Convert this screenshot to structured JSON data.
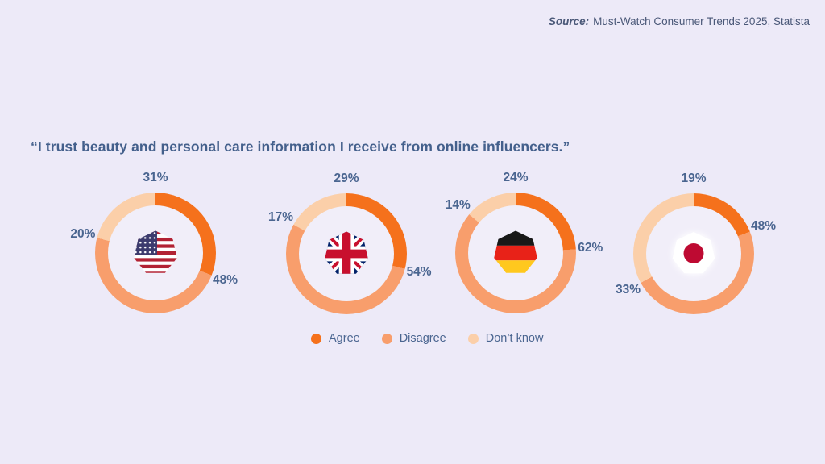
{
  "source": {
    "label": "Source:",
    "text": "Must-Watch Consumer Trends 2025, Statista"
  },
  "title": "“I trust beauty and personal care information I receive from online influencers.”",
  "legend": [
    {
      "label": "Agree",
      "color": "#F5711C"
    },
    {
      "label": "Disagree",
      "color": "#F89E6C"
    },
    {
      "label": "Don’t know",
      "color": "#FBCFA9"
    }
  ],
  "colors": {
    "background": "#EDEAF8",
    "donut_hole": "#F1EEF9",
    "text": "#4A6590",
    "title_text": "#44608C",
    "source_text": "#4A5878"
  },
  "chart_data": [
    {
      "type": "pie",
      "subtype": "donut",
      "country": "United States",
      "center_icon": "usa-flag-icon",
      "categories": [
        "Agree",
        "Disagree",
        "Don’t know"
      ],
      "values": [
        31,
        48,
        20
      ],
      "unit": "%",
      "start_angle_deg": 0,
      "direction": "clockwise"
    },
    {
      "type": "pie",
      "subtype": "donut",
      "country": "United Kingdom",
      "center_icon": "uk-flag-icon",
      "categories": [
        "Agree",
        "Disagree",
        "Don’t know"
      ],
      "values": [
        29,
        54,
        17
      ],
      "unit": "%",
      "start_angle_deg": 0,
      "direction": "clockwise"
    },
    {
      "type": "pie",
      "subtype": "donut",
      "country": "Germany",
      "center_icon": "germany-flag-icon",
      "categories": [
        "Agree",
        "Disagree",
        "Don’t know"
      ],
      "values": [
        24,
        62,
        14
      ],
      "unit": "%",
      "start_angle_deg": 0,
      "direction": "clockwise"
    },
    {
      "type": "pie",
      "subtype": "donut",
      "country": "Japan",
      "center_icon": "japan-flag-icon",
      "categories": [
        "Agree",
        "Disagree",
        "Don’t know"
      ],
      "values": [
        19,
        48,
        33
      ],
      "unit": "%",
      "start_angle_deg": 0,
      "direction": "clockwise"
    }
  ]
}
